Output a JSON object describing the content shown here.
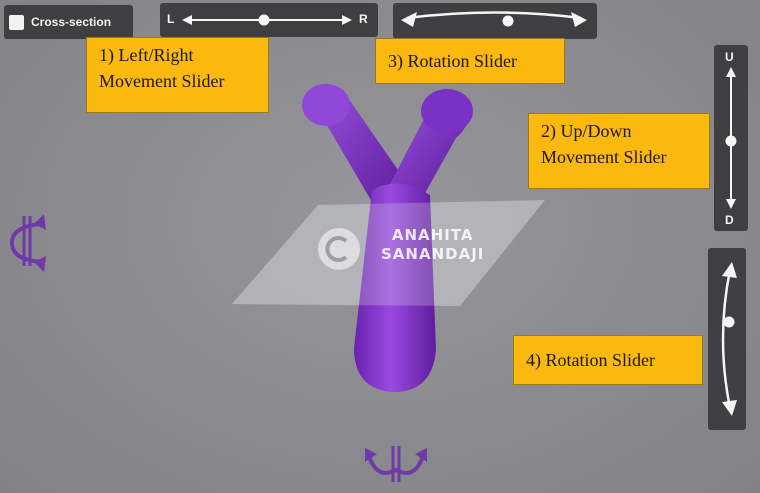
{
  "toolbar": {
    "cross_section_label": "Cross-section",
    "lr_slider": {
      "left_label": "L",
      "right_label": "R"
    },
    "ud_slider": {
      "up_label": "U",
      "down_label": "D"
    }
  },
  "callouts": {
    "lr_line1": "1) Left/Right",
    "lr_line2": "Movement Slider",
    "rotation_top": "3) Rotation Slider",
    "ud_line1": "2) Up/Down",
    "ud_line2": "Movement Slider",
    "rotation_side": "4) Rotation Slider"
  },
  "watermark": {
    "line1": "ANAHITA",
    "line2": "SANANDAJI",
    "logo_letter": "C"
  },
  "colors": {
    "callout_bg": "#fbb80f",
    "panel_bg": "#3f3f42",
    "model_purple": "#8e3ed6",
    "rotate_icon_purple": "#6f3aa8"
  },
  "icons": {
    "left_rotate": "rotate-vertical-axis-icon",
    "bottom_rotate": "rotate-horizontal-axis-icon"
  }
}
